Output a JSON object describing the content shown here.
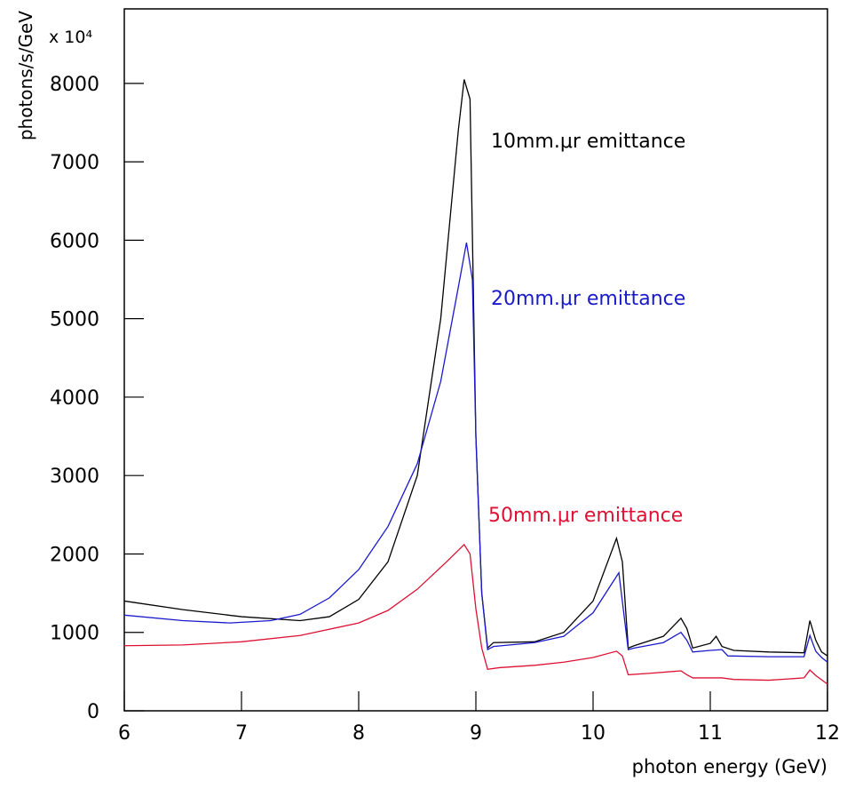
{
  "chart_data": {
    "type": "line",
    "y_axis_label": "photons/s/GeV",
    "y_multiplier": "x 10⁴",
    "x_axis_label": "photon energy (GeV)",
    "xlim": [
      6,
      12
    ],
    "xticks": [
      6,
      7,
      8,
      9,
      10,
      11,
      12
    ],
    "ylim": [
      0,
      8950
    ],
    "yticks": [
      0,
      1000,
      2000,
      3000,
      4000,
      5000,
      6000,
      7000,
      8000
    ],
    "grid": false,
    "series": [
      {
        "name": "10mm.μr emittance",
        "color": "#000000",
        "x": [
          6,
          6.5,
          7,
          7.5,
          7.75,
          8,
          8.25,
          8.5,
          8.7,
          8.85,
          8.9,
          8.95,
          9.0,
          9.05,
          9.1,
          9.15,
          9.5,
          9.75,
          10,
          10.2,
          10.25,
          10.3,
          10.35,
          10.6,
          10.75,
          10.8,
          10.85,
          11,
          11.05,
          11.1,
          11.2,
          11.5,
          11.8,
          11.85,
          11.9,
          11.95,
          12
        ],
        "values": [
          1400,
          1290,
          1200,
          1150,
          1200,
          1420,
          1900,
          3000,
          5000,
          7400,
          8050,
          7800,
          3500,
          1500,
          800,
          870,
          880,
          1000,
          1400,
          2200,
          1900,
          800,
          830,
          950,
          1180,
          1050,
          800,
          860,
          950,
          820,
          770,
          750,
          740,
          1150,
          900,
          750,
          700
        ]
      },
      {
        "name": "20mm.μr emittance",
        "color": "#1a1acc",
        "x": [
          6,
          6.5,
          6.9,
          7.25,
          7.5,
          7.75,
          8,
          8.25,
          8.5,
          8.7,
          8.85,
          8.92,
          8.97,
          9.0,
          9.05,
          9.1,
          9.15,
          9.5,
          9.75,
          10,
          10.22,
          10.3,
          10.35,
          10.6,
          10.75,
          10.8,
          10.85,
          11,
          11.1,
          11.15,
          11.5,
          11.8,
          11.85,
          11.9,
          11.95,
          12
        ],
        "values": [
          1220,
          1150,
          1120,
          1150,
          1230,
          1440,
          1800,
          2350,
          3150,
          4200,
          5400,
          5970,
          5500,
          3500,
          1500,
          780,
          820,
          870,
          950,
          1250,
          1760,
          780,
          800,
          870,
          1000,
          900,
          750,
          770,
          780,
          700,
          690,
          690,
          960,
          760,
          680,
          620
        ]
      },
      {
        "name": "50mm.μr emittance",
        "color": "#dd1133",
        "x": [
          6,
          6.5,
          7,
          7.5,
          8,
          8.25,
          8.5,
          8.75,
          8.9,
          8.95,
          9.0,
          9.05,
          9.1,
          9.2,
          9.5,
          9.75,
          10,
          10.2,
          10.25,
          10.3,
          10.5,
          10.75,
          10.8,
          10.85,
          11,
          11.1,
          11.2,
          11.5,
          11.8,
          11.85,
          11.9,
          12
        ],
        "values": [
          830,
          840,
          880,
          960,
          1120,
          1280,
          1550,
          1900,
          2120,
          2000,
          1300,
          800,
          530,
          550,
          580,
          620,
          680,
          760,
          700,
          460,
          480,
          510,
          460,
          420,
          420,
          420,
          400,
          390,
          420,
          520,
          450,
          340
        ]
      }
    ]
  }
}
